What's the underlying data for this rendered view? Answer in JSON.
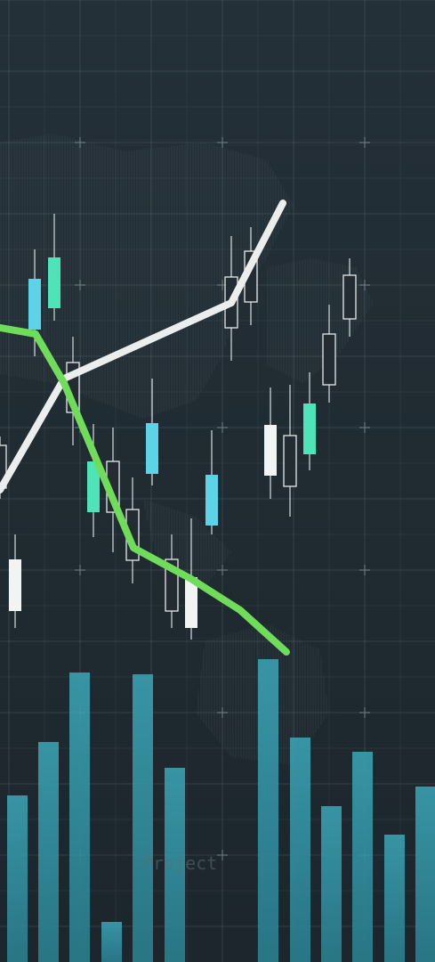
{
  "watermark": "Project"
}
